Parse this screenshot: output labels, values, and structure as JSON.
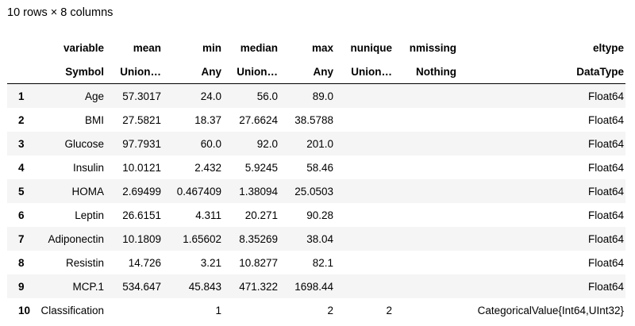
{
  "caption": "10 rows × 8 columns",
  "columns": [
    {
      "name": "variable",
      "type": "Symbol"
    },
    {
      "name": "mean",
      "type": "Union…"
    },
    {
      "name": "min",
      "type": "Any"
    },
    {
      "name": "median",
      "type": "Union…"
    },
    {
      "name": "max",
      "type": "Any"
    },
    {
      "name": "nunique",
      "type": "Union…"
    },
    {
      "name": "nmissing",
      "type": "Nothing"
    },
    {
      "name": "eltype",
      "type": "DataType"
    }
  ],
  "rows": [
    {
      "idx": "1",
      "variable": "Age",
      "mean": "57.3017",
      "min": "24.0",
      "median": "56.0",
      "max": "89.0",
      "nunique": "",
      "nmissing": "",
      "eltype": "Float64"
    },
    {
      "idx": "2",
      "variable": "BMI",
      "mean": "27.5821",
      "min": "18.37",
      "median": "27.6624",
      "max": "38.5788",
      "nunique": "",
      "nmissing": "",
      "eltype": "Float64"
    },
    {
      "idx": "3",
      "variable": "Glucose",
      "mean": "97.7931",
      "min": "60.0",
      "median": "92.0",
      "max": "201.0",
      "nunique": "",
      "nmissing": "",
      "eltype": "Float64"
    },
    {
      "idx": "4",
      "variable": "Insulin",
      "mean": "10.0121",
      "min": "2.432",
      "median": "5.9245",
      "max": "58.46",
      "nunique": "",
      "nmissing": "",
      "eltype": "Float64"
    },
    {
      "idx": "5",
      "variable": "HOMA",
      "mean": "2.69499",
      "min": "0.467409",
      "median": "1.38094",
      "max": "25.0503",
      "nunique": "",
      "nmissing": "",
      "eltype": "Float64"
    },
    {
      "idx": "6",
      "variable": "Leptin",
      "mean": "26.6151",
      "min": "4.311",
      "median": "20.271",
      "max": "90.28",
      "nunique": "",
      "nmissing": "",
      "eltype": "Float64"
    },
    {
      "idx": "7",
      "variable": "Adiponectin",
      "mean": "10.1809",
      "min": "1.65602",
      "median": "8.35269",
      "max": "38.04",
      "nunique": "",
      "nmissing": "",
      "eltype": "Float64"
    },
    {
      "idx": "8",
      "variable": "Resistin",
      "mean": "14.726",
      "min": "3.21",
      "median": "10.8277",
      "max": "82.1",
      "nunique": "",
      "nmissing": "",
      "eltype": "Float64"
    },
    {
      "idx": "9",
      "variable": "MCP.1",
      "mean": "534.647",
      "min": "45.843",
      "median": "471.322",
      "max": "1698.44",
      "nunique": "",
      "nmissing": "",
      "eltype": "Float64"
    },
    {
      "idx": "10",
      "variable": "Classification",
      "mean": "",
      "min": "1",
      "median": "",
      "max": "2",
      "nunique": "2",
      "nmissing": "",
      "eltype": "CategoricalValue{Int64,UInt32}"
    }
  ]
}
